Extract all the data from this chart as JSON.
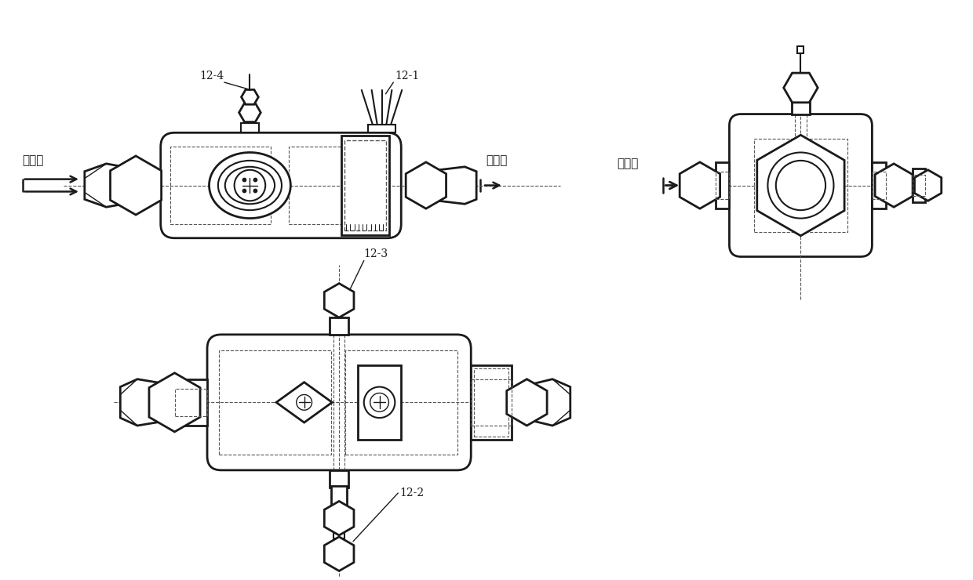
{
  "bg_color": "#ffffff",
  "line_color": "#1a1a1a",
  "dashed_color": "#555555",
  "label_12_4": "12-4",
  "label_12_1": "12-1",
  "label_12_3": "12-3",
  "label_12_2": "12-2",
  "label_inlet": "进油口",
  "label_outlet": "出油口",
  "figsize": [
    12.4,
    7.4
  ],
  "dpi": 100
}
